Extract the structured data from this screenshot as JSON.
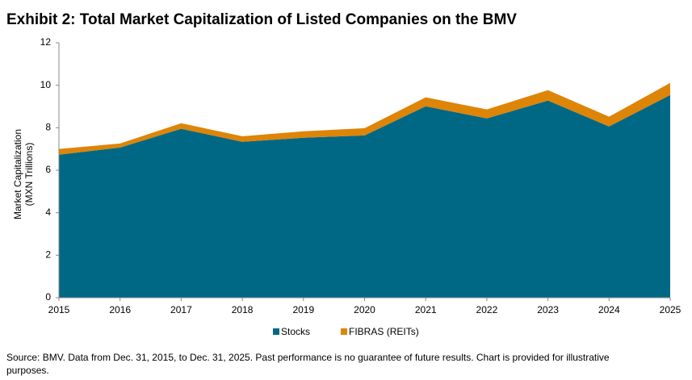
{
  "chart_data": {
    "type": "stacked-area",
    "title": "Exhibit 2: Total Market Capitalization of Listed Companies on the BMV",
    "ylabel": [
      "Market Capitalization",
      "(MXN Trillions)"
    ],
    "x": [
      2015,
      2016,
      2017,
      2018,
      2019,
      2020,
      2021,
      2022,
      2023,
      2024,
      2025
    ],
    "xlim": [
      2015,
      2025
    ],
    "xticks": [
      2015,
      2016,
      2017,
      2018,
      2019,
      2020,
      2021,
      2022,
      2023,
      2024,
      2025
    ],
    "ylim": [
      0,
      12
    ],
    "yticks": [
      0,
      2,
      4,
      6,
      8,
      10,
      12
    ],
    "grid": false,
    "legend": "bottom",
    "series": [
      {
        "name": "Stocks",
        "color": "#006885",
        "values": [
          6.73,
          7.07,
          7.95,
          7.34,
          7.53,
          7.64,
          9.01,
          8.44,
          9.28,
          8.06,
          9.54
        ]
      },
      {
        "name": "FIBRAS (REITs)",
        "color": "#de8407",
        "values": [
          0.27,
          0.19,
          0.26,
          0.26,
          0.3,
          0.34,
          0.42,
          0.42,
          0.49,
          0.46,
          0.57
        ]
      }
    ],
    "note": "Source: BMV.  Data from Dec. 31, 2015, to Dec. 31, 2025.  Past performance is no guarantee of future results.  Chart is provided for illustrative purposes."
  }
}
